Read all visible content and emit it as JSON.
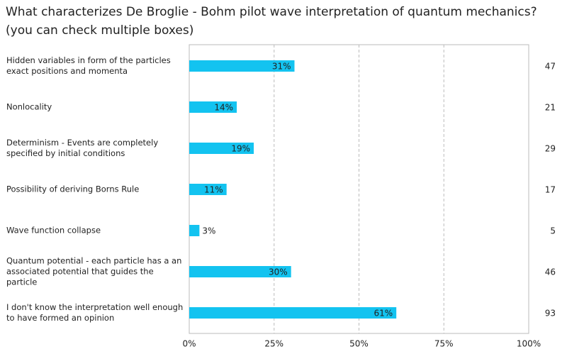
{
  "chart_data": {
    "type": "hbar",
    "title": "What characterizes De Broglie - Bohm pilot wave interpretation of quantum mechanics? (you can check multiple boxes)",
    "categories": [
      "Hidden variables in form of the particles exact positions and momenta",
      "Nonlocality",
      "Determinism - Events are completely specified by initial conditions",
      "Possibility of deriving Borns Rule",
      "Wave function collapse",
      "Quantum potential - each particle has a an associated potential that guides the particle",
      "I don't know the interpretation well enough to have formed an opinion"
    ],
    "values": [
      31,
      14,
      19,
      11,
      3,
      30,
      61
    ],
    "value_labels": [
      "31%",
      "14%",
      "19%",
      "11%",
      "3%",
      "30%",
      "61%"
    ],
    "counts": [
      47,
      21,
      29,
      17,
      5,
      46,
      93
    ],
    "color": "#13c3f0",
    "xlim": [
      0,
      100
    ],
    "xticks": [
      {
        "value": 0,
        "label": "0%"
      },
      {
        "value": 25,
        "label": "25%"
      },
      {
        "value": 50,
        "label": "50%"
      },
      {
        "value": 75,
        "label": "75%"
      },
      {
        "value": 100,
        "label": "100%"
      }
    ],
    "grid": true
  }
}
